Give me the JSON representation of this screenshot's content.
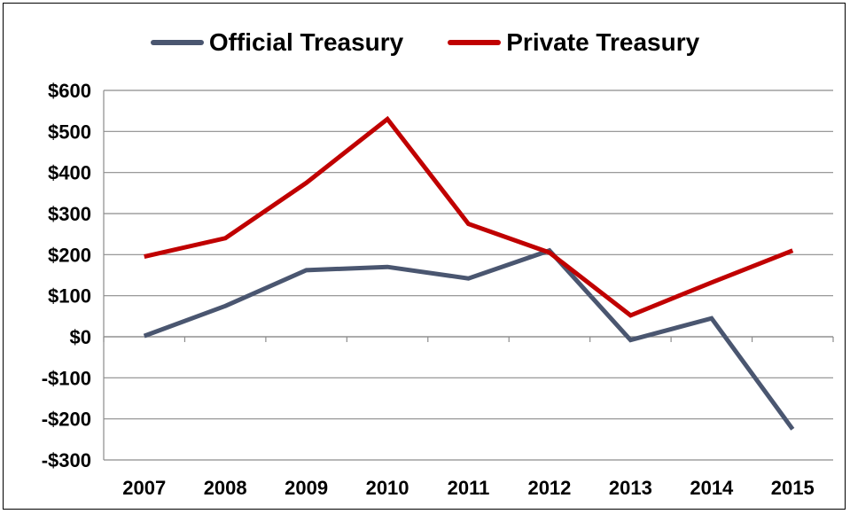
{
  "chart_data": {
    "type": "line",
    "title": "",
    "xlabel": "",
    "ylabel": "",
    "categories": [
      "2007",
      "2008",
      "2009",
      "2010",
      "2011",
      "2012",
      "2013",
      "2014",
      "2015"
    ],
    "ylim": [
      -300,
      600
    ],
    "yticks": [
      600,
      500,
      400,
      300,
      200,
      100,
      0,
      -100,
      -200,
      -300
    ],
    "ytick_labels": [
      "$600",
      "$500",
      "$400",
      "$300",
      "$200",
      "$100",
      "$0",
      "-$100",
      "-$200",
      "-$300"
    ],
    "grid": true,
    "legend_position": "top",
    "series": [
      {
        "name": "Official Treasury",
        "color": "#4a5670",
        "values": [
          2,
          75,
          162,
          170,
          142,
          210,
          -8,
          45,
          -225
        ]
      },
      {
        "name": "Private Treasury",
        "color": "#c00000",
        "values": [
          195,
          240,
          375,
          530,
          275,
          205,
          52,
          132,
          210
        ]
      }
    ]
  }
}
